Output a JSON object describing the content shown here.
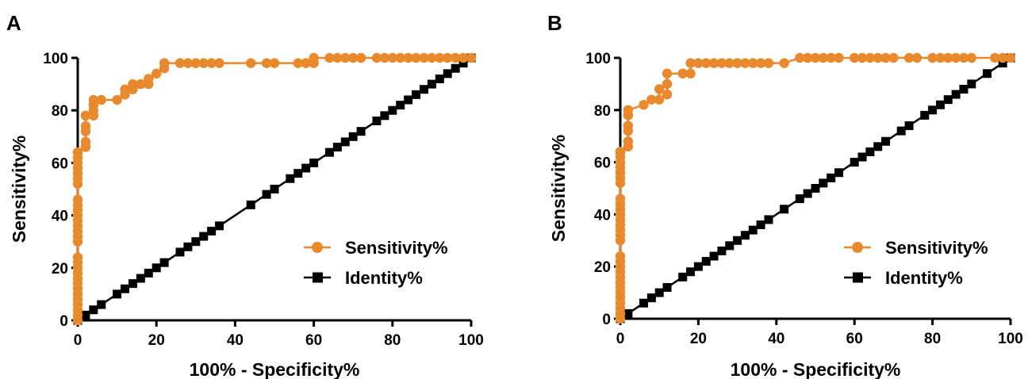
{
  "colors": {
    "sensitivity": "#E8892E",
    "identity": "#000000",
    "axis": "#000000"
  },
  "chart_data": [
    {
      "type": "line",
      "panel_label": "A",
      "xlabel": "100% - Specificity%",
      "ylabel": "Sensitivity%",
      "xlim": [
        0,
        100
      ],
      "ylim": [
        0,
        100
      ],
      "xticks": [
        0,
        20,
        40,
        60,
        80,
        100
      ],
      "yticks": [
        0,
        20,
        40,
        60,
        80,
        100
      ],
      "grid": false,
      "legend_position": "bottom-right",
      "series": [
        {
          "name": "Sensitivity%",
          "marker": "circle",
          "x": [
            0,
            0,
            0,
            0,
            0,
            0,
            0,
            0,
            0,
            0,
            0,
            0,
            0,
            0,
            0,
            0,
            0,
            0,
            0,
            0,
            0,
            0,
            0,
            0,
            0,
            0,
            0,
            0,
            0,
            0,
            0,
            0,
            2,
            2,
            2,
            2,
            2,
            4,
            4,
            4,
            4,
            6,
            10,
            12,
            12,
            14,
            14,
            16,
            18,
            18,
            20,
            22,
            22,
            26,
            28,
            30,
            32,
            34,
            36,
            44,
            48,
            50,
            56,
            58,
            60,
            60,
            64,
            66,
            68,
            70,
            72,
            76,
            78,
            80,
            82,
            84,
            86,
            88,
            90,
            92,
            94,
            96,
            98,
            100
          ],
          "y": [
            0,
            2,
            4,
            6,
            8,
            10,
            12,
            14,
            16,
            18,
            20,
            22,
            24,
            30,
            32,
            34,
            36,
            38,
            40,
            42,
            44,
            46,
            52,
            54,
            56,
            58,
            60,
            62,
            64,
            64,
            64,
            64,
            66,
            68,
            72,
            74,
            78,
            78,
            80,
            82,
            84,
            84,
            84,
            86,
            88,
            88,
            90,
            90,
            90,
            92,
            94,
            96,
            98,
            98,
            98,
            98,
            98,
            98,
            98,
            98,
            98,
            98,
            98,
            98,
            98,
            100,
            100,
            100,
            100,
            100,
            100,
            100,
            100,
            100,
            100,
            100,
            100,
            100,
            100,
            100,
            100,
            100,
            100,
            100
          ]
        },
        {
          "name": "Identity%",
          "marker": "square",
          "x": [
            0,
            2,
            4,
            6,
            10,
            12,
            14,
            16,
            18,
            20,
            22,
            26,
            28,
            30,
            32,
            34,
            36,
            44,
            48,
            50,
            54,
            56,
            58,
            60,
            64,
            66,
            68,
            70,
            72,
            76,
            78,
            80,
            82,
            84,
            86,
            88,
            90,
            92,
            94,
            96,
            98,
            100
          ],
          "y": [
            0,
            2,
            4,
            6,
            10,
            12,
            14,
            16,
            18,
            20,
            22,
            26,
            28,
            30,
            32,
            34,
            36,
            44,
            48,
            50,
            54,
            56,
            58,
            60,
            64,
            66,
            68,
            70,
            72,
            76,
            78,
            80,
            82,
            84,
            86,
            88,
            90,
            92,
            94,
            96,
            98,
            100
          ]
        }
      ]
    },
    {
      "type": "line",
      "panel_label": "B",
      "xlabel": "100% - Specificity%",
      "ylabel": "Sensitivity%",
      "xlim": [
        0,
        100
      ],
      "ylim": [
        0,
        100
      ],
      "xticks": [
        0,
        20,
        40,
        60,
        80,
        100
      ],
      "yticks": [
        0,
        20,
        40,
        60,
        80,
        100
      ],
      "grid": false,
      "legend_position": "bottom-right",
      "series": [
        {
          "name": "Sensitivity%",
          "marker": "circle",
          "x": [
            0,
            0,
            0,
            0,
            0,
            0,
            0,
            0,
            0,
            0,
            0,
            0,
            0,
            0,
            0,
            0,
            0,
            0,
            0,
            0,
            0,
            0,
            0,
            0,
            0,
            0,
            0,
            0,
            0,
            0,
            0,
            0,
            2,
            2,
            2,
            2,
            2,
            2,
            2,
            6,
            8,
            10,
            10,
            12,
            12,
            12,
            16,
            18,
            18,
            20,
            22,
            24,
            26,
            28,
            30,
            32,
            34,
            36,
            38,
            42,
            46,
            48,
            50,
            52,
            54,
            56,
            60,
            62,
            64,
            66,
            68,
            70,
            74,
            76,
            80,
            82,
            84,
            86,
            88,
            90,
            96,
            98,
            100
          ],
          "y": [
            0,
            2,
            4,
            6,
            8,
            10,
            12,
            14,
            16,
            18,
            20,
            22,
            24,
            30,
            32,
            34,
            36,
            38,
            40,
            42,
            44,
            46,
            52,
            54,
            56,
            58,
            60,
            62,
            64,
            64,
            64,
            64,
            66,
            68,
            72,
            74,
            78,
            78,
            80,
            82,
            84,
            84,
            88,
            86,
            90,
            94,
            94,
            94,
            98,
            98,
            98,
            98,
            98,
            98,
            98,
            98,
            98,
            98,
            98,
            98,
            100,
            100,
            100,
            100,
            100,
            100,
            100,
            100,
            100,
            100,
            100,
            100,
            100,
            100,
            100,
            100,
            100,
            100,
            100,
            100,
            100,
            100,
            100
          ]
        },
        {
          "name": "Identity%",
          "marker": "square",
          "x": [
            0,
            2,
            6,
            8,
            10,
            12,
            16,
            18,
            20,
            22,
            24,
            26,
            28,
            30,
            32,
            34,
            36,
            38,
            42,
            46,
            48,
            50,
            52,
            54,
            56,
            60,
            62,
            64,
            66,
            68,
            72,
            74,
            78,
            80,
            82,
            84,
            86,
            88,
            90,
            94,
            98,
            100
          ],
          "y": [
            0,
            2,
            6,
            8,
            10,
            12,
            16,
            18,
            20,
            22,
            24,
            26,
            28,
            30,
            32,
            34,
            36,
            38,
            42,
            46,
            48,
            50,
            52,
            54,
            56,
            60,
            62,
            64,
            66,
            68,
            72,
            74,
            78,
            80,
            82,
            84,
            86,
            88,
            90,
            94,
            98,
            100
          ]
        }
      ]
    }
  ]
}
